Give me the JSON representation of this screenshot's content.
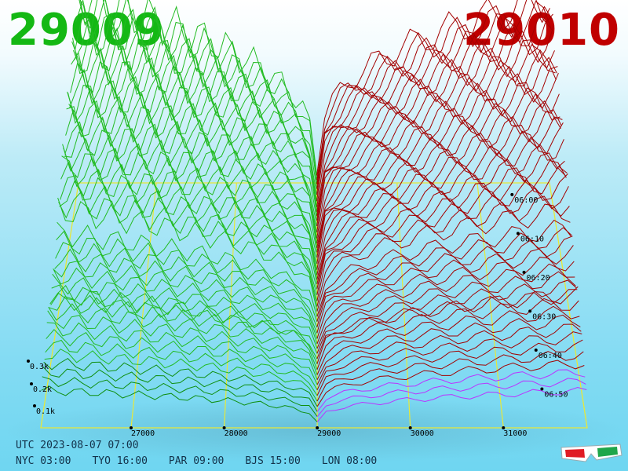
{
  "header": {
    "bid_price": "29009",
    "ask_price": "29010",
    "bid_color": "#14b814",
    "ask_color": "#c00000"
  },
  "footer": {
    "utc": "UTC 2023-08-07 07:00",
    "zones": [
      "NYC 03:00",
      "TYO 16:00",
      "PAR 09:00",
      "BJS 15:00",
      "LON 08:00"
    ]
  },
  "icon": "3d-glasses-icon",
  "chart_data": {
    "type": "3d depth-of-market",
    "x_axis": {
      "ticks": [
        "27000",
        "28000",
        "29000",
        "30000",
        "31000"
      ],
      "range": [
        26030,
        31900
      ],
      "mid": 29000
    },
    "y_axis": {
      "ticks": [
        "06:00",
        "06:10",
        "06:20",
        "06:30",
        "06:40",
        "06:50"
      ],
      "range": [
        "05:57",
        "07:00"
      ]
    },
    "z_axis": {
      "ticks": [
        "0.1k",
        "0.2k",
        "0.3k"
      ]
    },
    "series": [
      {
        "side": "bid",
        "color": "#22bb22",
        "recent_color": "#0f8f0f"
      },
      {
        "side": "ask",
        "color": "#a30000",
        "recent_color": "#bb33ff"
      }
    ],
    "grid_color": "#e8e838",
    "snapshots": 48
  }
}
